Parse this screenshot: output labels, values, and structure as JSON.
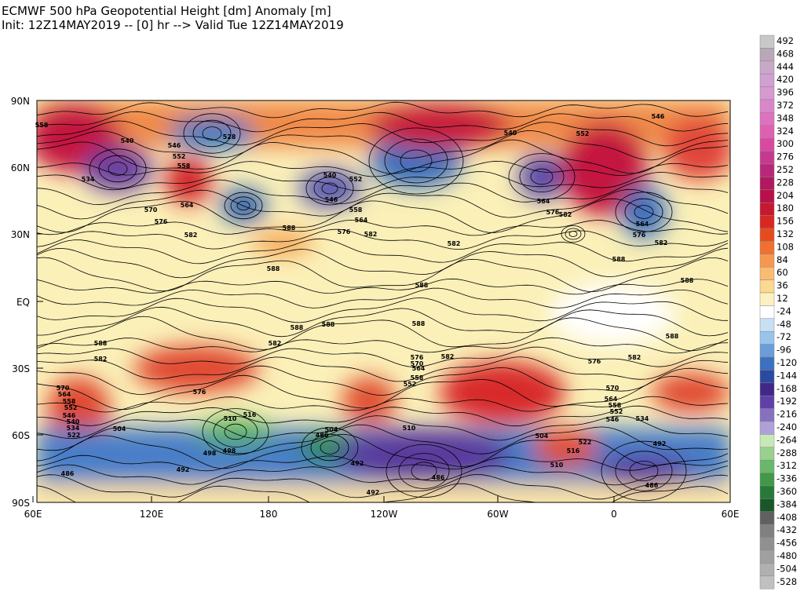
{
  "header": {
    "title": "ECMWF 500 hPa Geopotential Height [dm] Anomaly [m]",
    "subtitle": "Init: 12Z14MAY2019 -- [0] hr --> Valid Tue 12Z14MAY2019"
  },
  "map": {
    "lat_labels": [
      "90N",
      "60N",
      "30N",
      "EQ",
      "30S",
      "60S",
      "90S"
    ],
    "lon_labels": [
      "60E",
      "120E",
      "180",
      "120W",
      "60W",
      "0",
      "60E"
    ],
    "contour_labels": [
      "558",
      "540",
      "546",
      "552",
      "558",
      "534",
      "528",
      "564",
      "570",
      "576",
      "582",
      "540",
      "546",
      "552",
      "558",
      "564",
      "576",
      "582",
      "588",
      "588",
      "582",
      "540",
      "552",
      "546",
      "564",
      "576",
      "582",
      "564",
      "576",
      "582",
      "588",
      "588",
      "588",
      "588",
      "588",
      "588",
      "582",
      "588",
      "582",
      "570",
      "564",
      "558",
      "552",
      "546",
      "540",
      "534",
      "522",
      "504",
      "576",
      "516",
      "510",
      "498",
      "498",
      "486",
      "504",
      "576",
      "570",
      "564",
      "558",
      "552",
      "582",
      "510",
      "492",
      "486",
      "492",
      "492",
      "486",
      "570",
      "564",
      "558",
      "552",
      "546",
      "534",
      "576",
      "582",
      "504",
      "522",
      "516",
      "510",
      "492",
      "486",
      "588"
    ]
  },
  "colorbar": {
    "labels": [
      492,
      468,
      444,
      420,
      396,
      372,
      348,
      324,
      300,
      276,
      252,
      228,
      204,
      180,
      156,
      132,
      108,
      84,
      60,
      36,
      12,
      -24,
      -48,
      -72,
      -96,
      -120,
      -144,
      -168,
      -192,
      -216,
      -240,
      -264,
      -288,
      -312,
      -336,
      -360,
      -384,
      -408,
      -432,
      -456,
      -480,
      -504,
      -528
    ]
  }
}
